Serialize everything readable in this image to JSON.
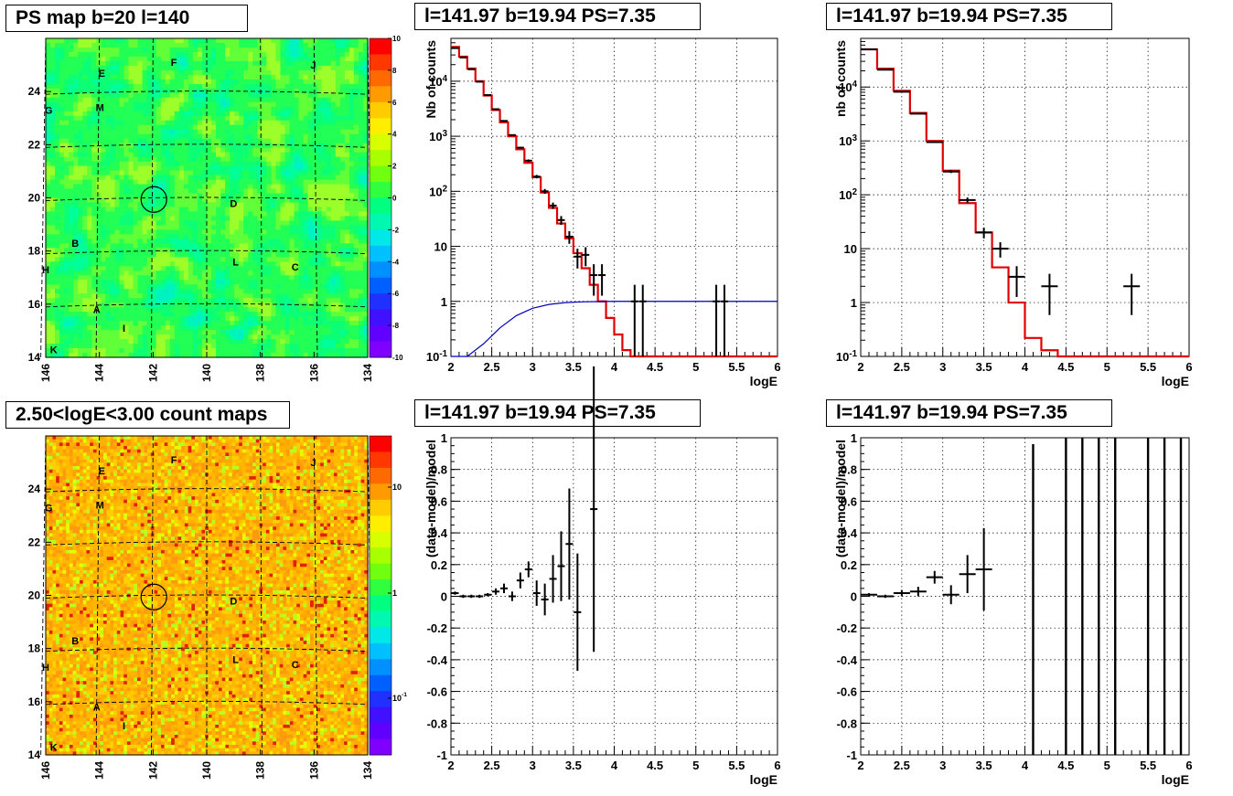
{
  "titles": {
    "map_top": "PS map b=20 l=140",
    "spec_top": "l=141.97 b=19.94 PS=7.35",
    "spec2_top": "l=141.97 b=19.94 PS=7.35",
    "map_bottom": "2.50<logE<3.00 count maps",
    "res_bottom": "l=141.97 b=19.94 PS=7.35",
    "res2_bottom": "l=141.97 b=19.94 PS=7.35"
  },
  "colors": {
    "model": "#e00000",
    "data": "#000000",
    "exposure": "#0000c0"
  },
  "chart_data": [
    {
      "type": "heatmap",
      "name": "ps-map",
      "xlim": [
        146,
        134
      ],
      "ylim": [
        14,
        26
      ],
      "xticks": [
        "146",
        "144",
        "142",
        "140",
        "138",
        "136",
        "134"
      ],
      "yticks": [
        "14",
        "16",
        "18",
        "20",
        "22",
        "24"
      ],
      "colorbar_ticks": [
        "10",
        "8",
        "6",
        "4",
        "2",
        "0",
        "-2",
        "-4",
        "-6",
        "-8",
        "-10"
      ],
      "zlim": [
        -10,
        10
      ],
      "sources": [
        {
          "label": "E",
          "l": 143.9,
          "b": 24.7
        },
        {
          "label": "F",
          "l": 141.2,
          "b": 25.1
        },
        {
          "label": "J",
          "l": 136.0,
          "b": 25.0
        },
        {
          "label": "G",
          "l": 145.9,
          "b": 23.3
        },
        {
          "label": "M",
          "l": 144.0,
          "b": 23.4
        },
        {
          "label": "D",
          "l": 139.0,
          "b": 19.8
        },
        {
          "label": "B",
          "l": 144.9,
          "b": 18.3
        },
        {
          "label": "H",
          "l": 146.0,
          "b": 17.3
        },
        {
          "label": "L",
          "l": 138.9,
          "b": 17.6
        },
        {
          "label": "C",
          "l": 136.7,
          "b": 17.4
        },
        {
          "label": "A",
          "l": 144.1,
          "b": 15.8
        },
        {
          "label": "I",
          "l": 143.0,
          "b": 15.1
        },
        {
          "label": "K",
          "l": 145.7,
          "b": 14.3
        }
      ],
      "target": {
        "l": 141.97,
        "b": 19.94
      }
    },
    {
      "type": "line",
      "name": "spectrum-1",
      "xlabel": "logE",
      "ylabel": "Nb of counts",
      "xlim": [
        2,
        6
      ],
      "ylim": [
        0.1,
        60000
      ],
      "yscale": "log",
      "xticks": [
        "2",
        "2.5",
        "3",
        "3.5",
        "4",
        "4.5",
        "5",
        "5.5",
        "6"
      ],
      "yticks": [
        "10^{-1}",
        "1",
        "10",
        "10^{2}",
        "10^{3}",
        "10^{4}"
      ],
      "model_steps": {
        "edges": [
          2.0,
          2.1,
          2.2,
          2.3,
          2.4,
          2.5,
          2.6,
          2.7,
          2.8,
          2.9,
          3.0,
          3.1,
          3.2,
          3.3,
          3.4,
          3.5,
          3.6,
          3.7,
          3.8,
          3.9,
          4.0,
          4.1,
          4.2,
          6.0
        ],
        "values": [
          42000,
          28000,
          17000,
          10000,
          5500,
          3000,
          1800,
          1000,
          580,
          330,
          180,
          95,
          50,
          26,
          14,
          7.5,
          4,
          2,
          1,
          0.5,
          0.25,
          0.13,
          0.1
        ]
      },
      "exposure": {
        "x": [
          2.0,
          2.2,
          2.4,
          2.6,
          2.8,
          3.0,
          3.2,
          3.4,
          3.6,
          3.8,
          4.0,
          5.0,
          6.0
        ],
        "y": [
          0.1,
          0.1,
          0.17,
          0.33,
          0.55,
          0.75,
          0.88,
          0.95,
          0.98,
          0.99,
          1.0,
          1.0,
          1.0
        ]
      },
      "points": [
        {
          "x": 2.05,
          "y": 40000
        },
        {
          "x": 2.15,
          "y": 27000
        },
        {
          "x": 2.25,
          "y": 16500
        },
        {
          "x": 2.35,
          "y": 9800
        },
        {
          "x": 2.45,
          "y": 5600
        },
        {
          "x": 2.55,
          "y": 3100
        },
        {
          "x": 2.65,
          "y": 1900
        },
        {
          "x": 2.75,
          "y": 1050
        },
        {
          "x": 2.85,
          "y": 620
        },
        {
          "x": 2.95,
          "y": 360
        },
        {
          "x": 3.05,
          "y": 185
        },
        {
          "x": 3.15,
          "y": 100
        },
        {
          "x": 3.25,
          "y": 55
        },
        {
          "x": 3.35,
          "y": 30
        },
        {
          "x": 3.45,
          "y": 15
        },
        {
          "x": 3.55,
          "y": 6.5
        },
        {
          "x": 3.65,
          "y": 7
        },
        {
          "x": 3.75,
          "y": 3
        },
        {
          "x": 3.85,
          "y": 3
        },
        {
          "x": 4.25,
          "y": 1
        },
        {
          "x": 4.35,
          "y": 1
        },
        {
          "x": 5.25,
          "y": 1
        },
        {
          "x": 5.35,
          "y": 1
        }
      ]
    },
    {
      "type": "line",
      "name": "spectrum-2",
      "xlabel": "logE",
      "ylabel": "nb of counts",
      "xlim": [
        2,
        6
      ],
      "ylim": [
        0.1,
        80000
      ],
      "yscale": "log",
      "xticks": [
        "2",
        "2.5",
        "3",
        "3.5",
        "4",
        "4.5",
        "5",
        "5.5",
        "6"
      ],
      "yticks": [
        "10^{-1}",
        "1",
        "10",
        "10^{2}",
        "10^{3}",
        "10^{4}"
      ],
      "model_steps": {
        "edges": [
          2.0,
          2.2,
          2.4,
          2.6,
          2.8,
          3.0,
          3.2,
          3.4,
          3.6,
          3.8,
          4.0,
          4.2,
          4.4,
          6.0
        ],
        "values": [
          50000,
          22000,
          8500,
          3300,
          1000,
          280,
          70,
          20,
          4.5,
          1.0,
          0.22,
          0.13,
          0.1
        ]
      },
      "points": [
        {
          "x": 2.1,
          "y": 50000
        },
        {
          "x": 2.3,
          "y": 21000
        },
        {
          "x": 2.5,
          "y": 8200
        },
        {
          "x": 2.7,
          "y": 3200
        },
        {
          "x": 2.9,
          "y": 950
        },
        {
          "x": 3.1,
          "y": 270
        },
        {
          "x": 3.3,
          "y": 80
        },
        {
          "x": 3.5,
          "y": 20
        },
        {
          "x": 3.7,
          "y": 10
        },
        {
          "x": 3.9,
          "y": 3
        },
        {
          "x": 4.3,
          "y": 2
        },
        {
          "x": 5.3,
          "y": 2
        }
      ]
    },
    {
      "type": "heatmap",
      "name": "count-map",
      "xlim": [
        146,
        134
      ],
      "ylim": [
        14,
        26
      ],
      "xticks": [
        "146",
        "144",
        "142",
        "140",
        "138",
        "136",
        "134"
      ],
      "yticks": [
        "14",
        "16",
        "18",
        "20",
        "22",
        "24"
      ],
      "colorbar_ticks": [
        "10",
        "1",
        "10^{-1}"
      ],
      "zscale": "log"
    },
    {
      "type": "scatter",
      "name": "residual-1",
      "xlabel": "logE",
      "ylabel": "(data-model)/model",
      "xlim": [
        2,
        6
      ],
      "ylim": [
        -1,
        1
      ],
      "xticks": [
        "2",
        "2.5",
        "3",
        "3.5",
        "4",
        "4.5",
        "5",
        "5.5",
        "6"
      ],
      "yticks": [
        "-1",
        "-0.8",
        "-0.6",
        "-0.4",
        "-0.2",
        "0",
        "0.2",
        "0.4",
        "0.6",
        "0.8",
        "1"
      ],
      "points": [
        {
          "x": 2.05,
          "y": 0.02,
          "e": 0.01
        },
        {
          "x": 2.15,
          "y": 0.0,
          "e": 0.01
        },
        {
          "x": 2.25,
          "y": 0.0,
          "e": 0.01
        },
        {
          "x": 2.35,
          "y": 0.0,
          "e": 0.01
        },
        {
          "x": 2.45,
          "y": 0.01,
          "e": 0.01
        },
        {
          "x": 2.55,
          "y": 0.03,
          "e": 0.02
        },
        {
          "x": 2.65,
          "y": 0.05,
          "e": 0.03
        },
        {
          "x": 2.75,
          "y": 0.0,
          "e": 0.03
        },
        {
          "x": 2.85,
          "y": 0.1,
          "e": 0.05
        },
        {
          "x": 2.95,
          "y": 0.17,
          "e": 0.05
        },
        {
          "x": 3.05,
          "y": 0.02,
          "e": 0.08
        },
        {
          "x": 3.15,
          "y": -0.02,
          "e": 0.1
        },
        {
          "x": 3.25,
          "y": 0.11,
          "e": 0.15
        },
        {
          "x": 3.35,
          "y": 0.19,
          "e": 0.22
        },
        {
          "x": 3.45,
          "y": 0.33,
          "e": 0.35
        },
        {
          "x": 3.55,
          "y": -0.1,
          "e": 0.37
        },
        {
          "x": 3.75,
          "y": 0.55,
          "e": 0.9
        }
      ]
    },
    {
      "type": "scatter",
      "name": "residual-2",
      "xlabel": "logE",
      "ylabel": "(data-model)/model",
      "xlim": [
        2,
        6
      ],
      "ylim": [
        -1,
        1
      ],
      "xticks": [
        "2",
        "2.5",
        "3",
        "3.5",
        "4",
        "4.5",
        "5",
        "5.5",
        "6"
      ],
      "yticks": [
        "-1",
        "-0.8",
        "-0.6",
        "-0.4",
        "-0.2",
        "0",
        "0.2",
        "0.4",
        "0.6",
        "0.8",
        "1"
      ],
      "points": [
        {
          "x": 2.1,
          "y": 0.01,
          "e": 0.01
        },
        {
          "x": 2.3,
          "y": 0.0,
          "e": 0.01
        },
        {
          "x": 2.5,
          "y": 0.02,
          "e": 0.02
        },
        {
          "x": 2.7,
          "y": 0.03,
          "e": 0.03
        },
        {
          "x": 2.9,
          "y": 0.12,
          "e": 0.04
        },
        {
          "x": 3.1,
          "y": 0.01,
          "e": 0.06
        },
        {
          "x": 3.3,
          "y": 0.14,
          "e": 0.12
        },
        {
          "x": 3.5,
          "y": 0.17,
          "e": 0.26
        }
      ],
      "bars_full": [
        4.1,
        4.5,
        4.7,
        4.9,
        5.1,
        5.5,
        5.7,
        5.9
      ]
    }
  ]
}
